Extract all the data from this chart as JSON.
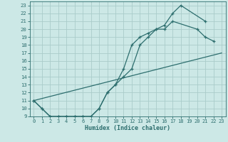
{
  "xlabel": "Humidex (Indice chaleur)",
  "bg_color": "#cce8e6",
  "grid_color": "#aaccca",
  "line_color": "#2d6e6e",
  "xlim": [
    -0.5,
    23.5
  ],
  "ylim": [
    9,
    23.5
  ],
  "yticks": [
    9,
    10,
    11,
    12,
    13,
    14,
    15,
    16,
    17,
    18,
    19,
    20,
    21,
    22,
    23
  ],
  "xticks": [
    0,
    1,
    2,
    3,
    4,
    5,
    6,
    7,
    8,
    9,
    10,
    11,
    12,
    13,
    14,
    15,
    16,
    17,
    18,
    19,
    20,
    21,
    22,
    23
  ],
  "curve1_x": [
    0,
    1,
    2,
    3,
    4,
    5,
    6,
    7,
    8,
    9,
    10,
    11,
    12,
    13,
    14,
    15,
    16,
    17,
    18,
    21
  ],
  "curve1_y": [
    11,
    10,
    9,
    9,
    9,
    9,
    9,
    9,
    10,
    12,
    13,
    15,
    18,
    19,
    19.5,
    20,
    20.5,
    22,
    23,
    21
  ],
  "curve2_x": [
    0,
    1,
    2,
    3,
    4,
    5,
    6,
    7,
    8,
    9,
    10,
    11,
    12,
    13,
    14,
    15,
    16,
    17,
    20,
    21,
    22
  ],
  "curve2_y": [
    11,
    10,
    9,
    9,
    9,
    9,
    9,
    9,
    10,
    12,
    13,
    14,
    15,
    18,
    19,
    20,
    20,
    21,
    20,
    19,
    18.5
  ],
  "curve3_x": [
    0,
    23
  ],
  "curve3_y": [
    11,
    17
  ]
}
